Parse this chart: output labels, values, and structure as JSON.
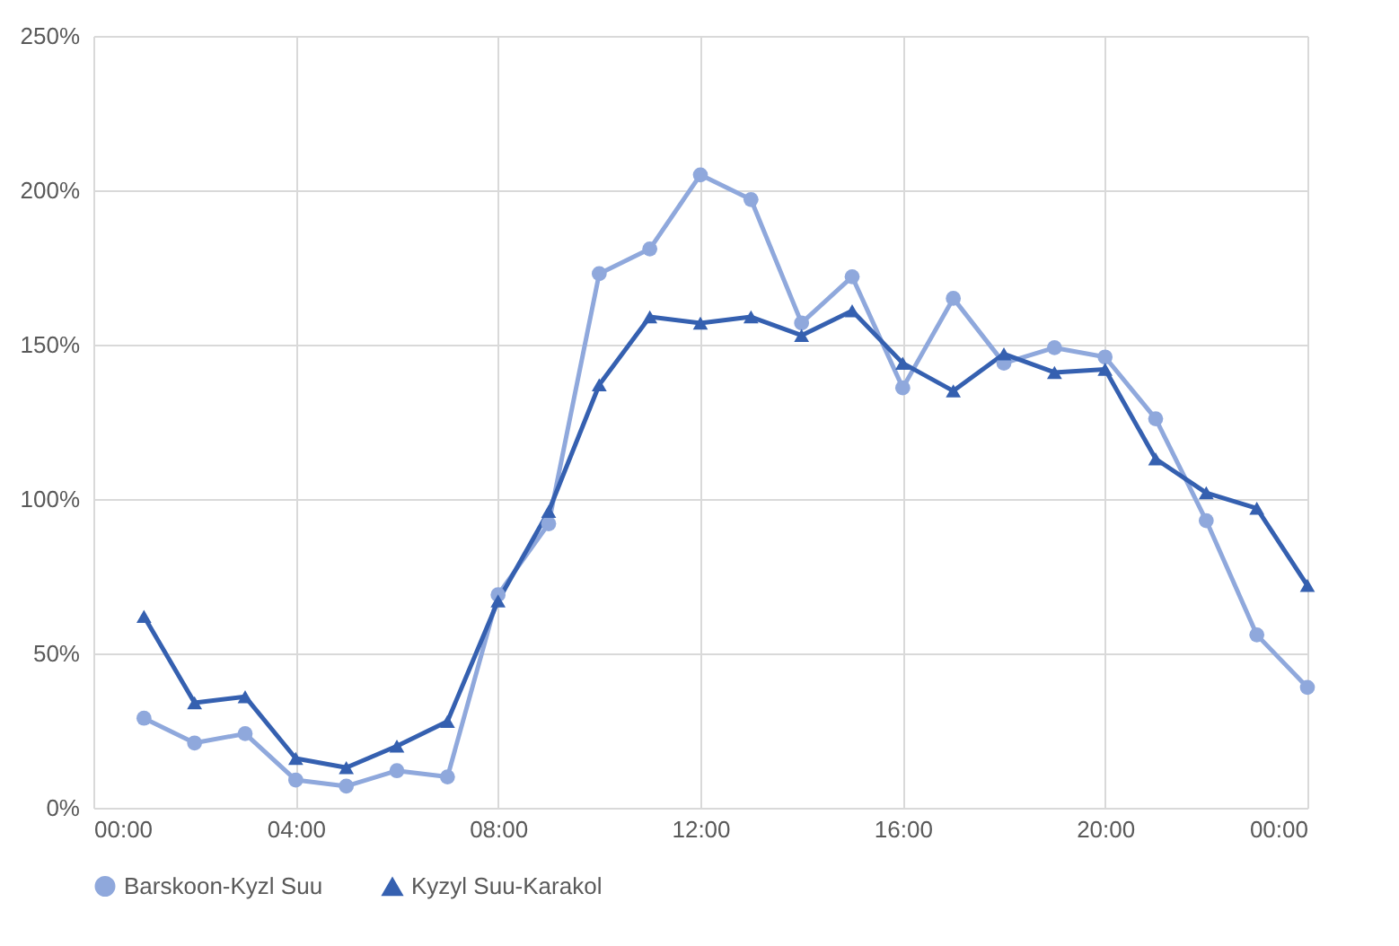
{
  "chart_data": {
    "type": "line",
    "x": [
      1,
      2,
      3,
      4,
      5,
      6,
      7,
      8,
      9,
      10,
      11,
      12,
      13,
      14,
      15,
      16,
      17,
      18,
      19,
      20,
      21,
      22,
      23,
      24
    ],
    "xlim": [
      0,
      24
    ],
    "xticks": [
      {
        "value": 0,
        "label": "00:00"
      },
      {
        "value": 4,
        "label": "04:00"
      },
      {
        "value": 8,
        "label": "08:00"
      },
      {
        "value": 12,
        "label": "12:00"
      },
      {
        "value": 16,
        "label": "16:00"
      },
      {
        "value": 20,
        "label": "20:00"
      },
      {
        "value": 24,
        "label": "00:00"
      }
    ],
    "ylim": [
      0,
      250
    ],
    "yticks": [
      {
        "value": 0,
        "label": "0%"
      },
      {
        "value": 50,
        "label": "50%"
      },
      {
        "value": 100,
        "label": "100%"
      },
      {
        "value": 150,
        "label": "150%"
      },
      {
        "value": 200,
        "label": "200%"
      },
      {
        "value": 250,
        "label": "250%"
      }
    ],
    "grid": true,
    "legend": "bottom",
    "line_style": "solid",
    "series": [
      {
        "name": "Barskoon-Kyzl Suu",
        "color": "#8fa8dc",
        "marker": "circle",
        "values": [
          29,
          21,
          24,
          9,
          7,
          12,
          10,
          69,
          92,
          173,
          181,
          205,
          197,
          157,
          172,
          136,
          165,
          144,
          149,
          146,
          126,
          93,
          56,
          39
        ]
      },
      {
        "name": "Kyzyl Suu-Karakol",
        "color": "#3560b0",
        "marker": "triangle",
        "values": [
          62,
          34,
          36,
          16,
          13,
          20,
          28,
          67,
          96,
          137,
          159,
          157,
          159,
          153,
          161,
          144,
          135,
          147,
          141,
          142,
          113,
          102,
          97,
          72
        ]
      }
    ]
  }
}
